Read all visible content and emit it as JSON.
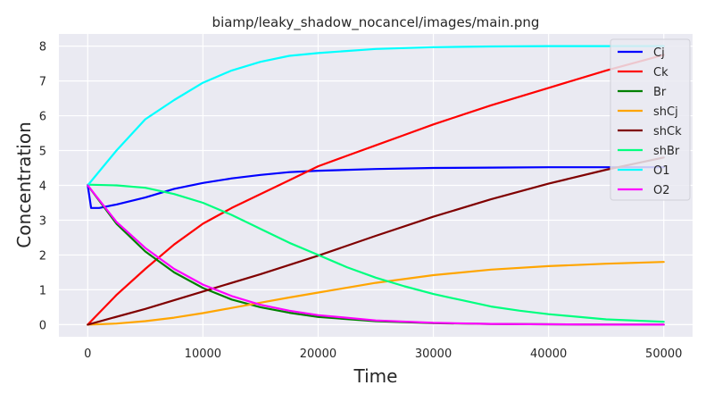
{
  "chart_data": {
    "type": "line",
    "title": "biamp/leaky_shadow_nocancel/images/main.png",
    "xlabel": "Time",
    "ylabel": "Concentration",
    "xlim": [
      -2500,
      52500
    ],
    "ylim": [
      -0.35,
      8.35
    ],
    "xticks": [
      0,
      10000,
      20000,
      30000,
      40000,
      50000
    ],
    "xtick_labels": [
      "0",
      "10000",
      "20000",
      "30000",
      "40000",
      "50000"
    ],
    "yticks": [
      0,
      1,
      2,
      3,
      4,
      5,
      6,
      7,
      8
    ],
    "ytick_labels": [
      "0",
      "1",
      "2",
      "3",
      "4",
      "5",
      "6",
      "7",
      "8"
    ],
    "grid": true,
    "legend_position": "top-right",
    "series": [
      {
        "name": "Cj",
        "color": "#0000ff",
        "x": [
          0,
          300,
          1000,
          2500,
          5000,
          7500,
          10000,
          12500,
          15000,
          17500,
          20000,
          25000,
          30000,
          35000,
          40000,
          45000,
          50000
        ],
        "y": [
          4.0,
          3.35,
          3.35,
          3.45,
          3.65,
          3.9,
          4.07,
          4.2,
          4.3,
          4.38,
          4.42,
          4.47,
          4.5,
          4.51,
          4.52,
          4.52,
          4.52
        ]
      },
      {
        "name": "Ck",
        "color": "#ff0000",
        "x": [
          0,
          2500,
          5000,
          7500,
          10000,
          12500,
          15000,
          17500,
          20000,
          22500,
          25000,
          27500,
          30000,
          35000,
          40000,
          45000,
          50000
        ],
        "y": [
          0.0,
          0.85,
          1.6,
          2.3,
          2.9,
          3.35,
          3.75,
          4.15,
          4.55,
          4.85,
          5.15,
          5.45,
          5.75,
          6.3,
          6.8,
          7.3,
          7.75
        ]
      },
      {
        "name": "Br",
        "color": "#008000",
        "x": [
          0,
          2500,
          5000,
          7500,
          10000,
          12500,
          15000,
          17500,
          20000,
          25000,
          30000,
          35000,
          40000,
          45000,
          50000
        ],
        "y": [
          4.0,
          2.9,
          2.1,
          1.5,
          1.05,
          0.72,
          0.5,
          0.34,
          0.22,
          0.1,
          0.04,
          0.02,
          0.01,
          0.0,
          0.0
        ]
      },
      {
        "name": "shCj",
        "color": "#ffa500",
        "x": [
          0,
          2500,
          5000,
          7500,
          10000,
          12500,
          15000,
          17500,
          20000,
          25000,
          30000,
          35000,
          40000,
          45000,
          50000
        ],
        "y": [
          0.0,
          0.03,
          0.1,
          0.2,
          0.33,
          0.48,
          0.63,
          0.78,
          0.92,
          1.2,
          1.42,
          1.58,
          1.68,
          1.75,
          1.8
        ]
      },
      {
        "name": "shCk",
        "color": "#800000",
        "x": [
          0,
          5000,
          10000,
          15000,
          20000,
          25000,
          30000,
          35000,
          40000,
          45000,
          50000
        ],
        "y": [
          0.0,
          0.45,
          0.95,
          1.45,
          1.98,
          2.55,
          3.1,
          3.6,
          4.05,
          4.45,
          4.8
        ]
      },
      {
        "name": "shBr",
        "color": "#00ff7f",
        "x": [
          0,
          2500,
          5000,
          7500,
          10000,
          12500,
          15000,
          17500,
          20000,
          22500,
          25000,
          27500,
          30000,
          32500,
          35000,
          37500,
          40000,
          45000,
          50000
        ],
        "y": [
          4.02,
          4.0,
          3.93,
          3.75,
          3.5,
          3.15,
          2.75,
          2.35,
          2.0,
          1.65,
          1.35,
          1.1,
          0.88,
          0.7,
          0.52,
          0.4,
          0.3,
          0.15,
          0.08
        ]
      },
      {
        "name": "O1",
        "color": "#00ffff",
        "x": [
          0,
          2500,
          5000,
          7500,
          10000,
          12500,
          15000,
          17500,
          20000,
          25000,
          30000,
          35000,
          40000,
          45000,
          50000
        ],
        "y": [
          4.0,
          5.0,
          5.9,
          6.45,
          6.95,
          7.3,
          7.55,
          7.72,
          7.8,
          7.92,
          7.97,
          7.99,
          8.0,
          8.0,
          8.0
        ]
      },
      {
        "name": "O2",
        "color": "#ff00ff",
        "x": [
          0,
          2500,
          5000,
          7500,
          10000,
          12500,
          15000,
          17500,
          20000,
          25000,
          30000,
          35000,
          40000,
          45000,
          50000
        ],
        "y": [
          4.0,
          2.95,
          2.2,
          1.6,
          1.15,
          0.82,
          0.57,
          0.4,
          0.27,
          0.12,
          0.05,
          0.02,
          0.01,
          0.0,
          0.0
        ]
      }
    ]
  }
}
